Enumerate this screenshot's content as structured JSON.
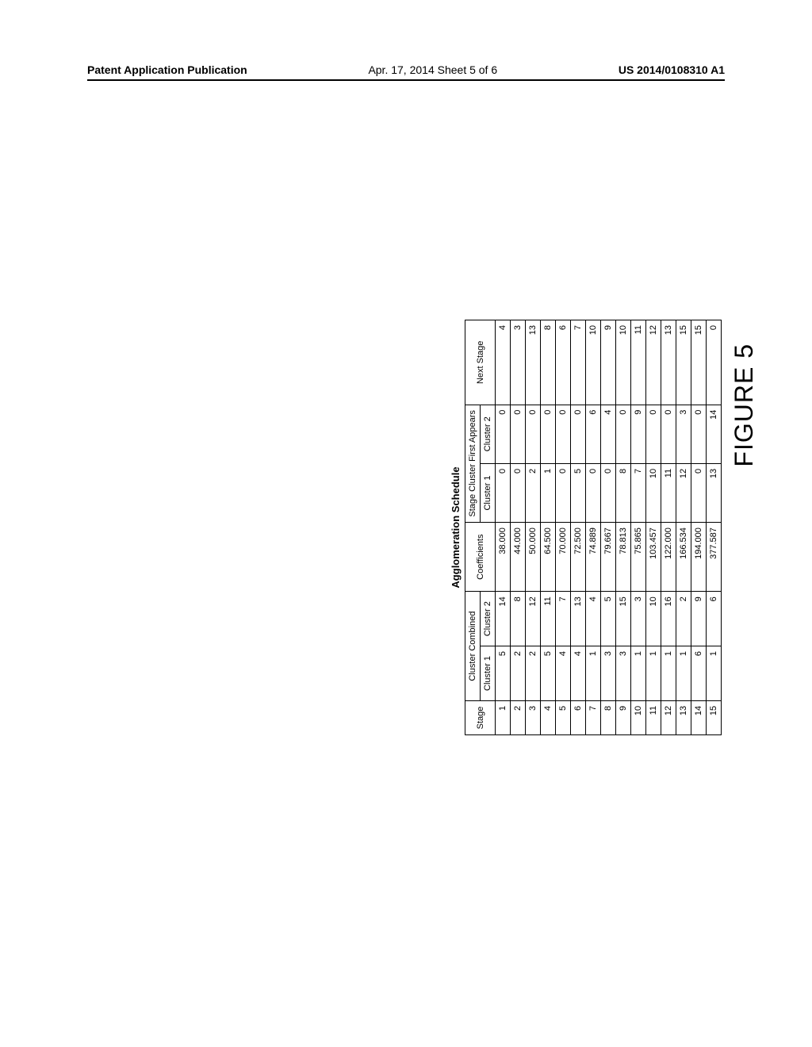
{
  "header": {
    "left": "Patent Application Publication",
    "center": "Apr. 17, 2014  Sheet 5 of 6",
    "right": "US 2014/0108310 A1"
  },
  "table": {
    "title": "Agglomeration Schedule",
    "col_groups": {
      "cluster_combined": "Cluster Combined",
      "stage_first_appears": "Stage Cluster First Appears"
    },
    "columns": {
      "stage": "Stage",
      "cc1": "Cluster 1",
      "cc2": "Cluster 2",
      "coef": "Coefficients",
      "sc1": "Cluster 1",
      "sc2": "Cluster 2",
      "next": "Next Stage"
    },
    "rows": [
      {
        "stage": "1",
        "cc1": "5",
        "cc2": "14",
        "coef": "38.000",
        "sc1": "0",
        "sc2": "0",
        "next": "4"
      },
      {
        "stage": "2",
        "cc1": "2",
        "cc2": "8",
        "coef": "44.000",
        "sc1": "0",
        "sc2": "0",
        "next": "3"
      },
      {
        "stage": "3",
        "cc1": "2",
        "cc2": "12",
        "coef": "50.000",
        "sc1": "2",
        "sc2": "0",
        "next": "13"
      },
      {
        "stage": "4",
        "cc1": "5",
        "cc2": "11",
        "coef": "64.500",
        "sc1": "1",
        "sc2": "0",
        "next": "8"
      },
      {
        "stage": "5",
        "cc1": "4",
        "cc2": "7",
        "coef": "70.000",
        "sc1": "0",
        "sc2": "0",
        "next": "6"
      },
      {
        "stage": "6",
        "cc1": "4",
        "cc2": "13",
        "coef": "72.500",
        "sc1": "5",
        "sc2": "0",
        "next": "7"
      },
      {
        "stage": "7",
        "cc1": "1",
        "cc2": "4",
        "coef": "74.889",
        "sc1": "0",
        "sc2": "6",
        "next": "10"
      },
      {
        "stage": "8",
        "cc1": "3",
        "cc2": "5",
        "coef": "79.667",
        "sc1": "0",
        "sc2": "4",
        "next": "9"
      },
      {
        "stage": "9",
        "cc1": "3",
        "cc2": "15",
        "coef": "78.813",
        "sc1": "8",
        "sc2": "0",
        "next": "10"
      },
      {
        "stage": "10",
        "cc1": "1",
        "cc2": "3",
        "coef": "75.865",
        "sc1": "7",
        "sc2": "9",
        "next": "11"
      },
      {
        "stage": "11",
        "cc1": "1",
        "cc2": "10",
        "coef": "103.457",
        "sc1": "10",
        "sc2": "0",
        "next": "12"
      },
      {
        "stage": "12",
        "cc1": "1",
        "cc2": "16",
        "coef": "122.000",
        "sc1": "11",
        "sc2": "0",
        "next": "13"
      },
      {
        "stage": "13",
        "cc1": "1",
        "cc2": "2",
        "coef": "166.534",
        "sc1": "12",
        "sc2": "3",
        "next": "15"
      },
      {
        "stage": "14",
        "cc1": "6",
        "cc2": "9",
        "coef": "194.000",
        "sc1": "0",
        "sc2": "0",
        "next": "15"
      },
      {
        "stage": "15",
        "cc1": "1",
        "cc2": "6",
        "coef": "377.587",
        "sc1": "13",
        "sc2": "14",
        "next": "0"
      }
    ]
  },
  "figure_label": "FIGURE 5"
}
